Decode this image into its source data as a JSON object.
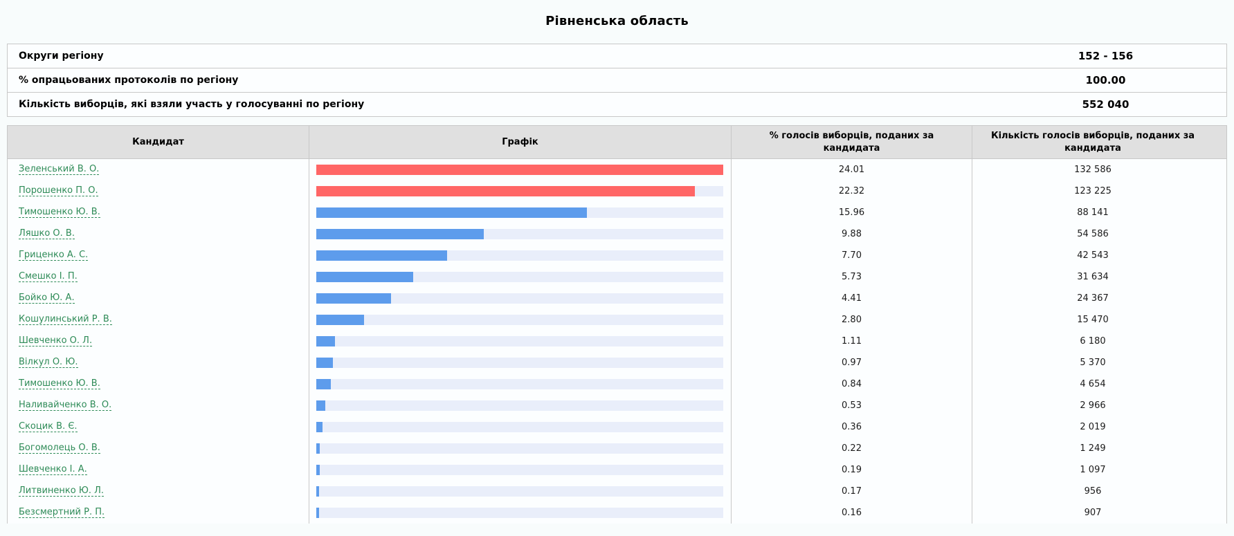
{
  "page": {
    "title": "Рівненська область",
    "colors": {
      "bar_leader_red": "#ff6666",
      "bar_blue": "#5d9cec",
      "bar_track": "#e9eefa",
      "candidate_link_green": "#2e8b57",
      "header_bg": "#e0e0e0",
      "border": "#c8c8c8"
    }
  },
  "summary": {
    "rows": [
      {
        "label": "Округи регіону",
        "value": "152 - 156"
      },
      {
        "label": "% опрацьованих протоколів по регіону",
        "value": "100.00"
      },
      {
        "label": "Кількість виборців, які взяли участь у голосуванні по регіону",
        "value": "552 040"
      }
    ]
  },
  "results_table": {
    "columns": [
      "Кандидат",
      "Графік",
      "% голосів виборців, поданих за кандидата",
      "Кількість голосів виборців, поданих за кандидата"
    ],
    "max_percent": 24.01,
    "rows": [
      {
        "candidate": "Зеленський В. О.",
        "percent": "24.01",
        "votes": "132 586",
        "leader": true
      },
      {
        "candidate": "Порошенко П. О.",
        "percent": "22.32",
        "votes": "123 225",
        "leader": true
      },
      {
        "candidate": "Тимошенко Ю. В.",
        "percent": "15.96",
        "votes": "88 141",
        "leader": false
      },
      {
        "candidate": "Ляшко О. В.",
        "percent": "9.88",
        "votes": "54 586",
        "leader": false
      },
      {
        "candidate": "Гриценко А. С.",
        "percent": "7.70",
        "votes": "42 543",
        "leader": false
      },
      {
        "candidate": "Смешко І. П.",
        "percent": "5.73",
        "votes": "31 634",
        "leader": false
      },
      {
        "candidate": "Бойко Ю. А.",
        "percent": "4.41",
        "votes": "24 367",
        "leader": false
      },
      {
        "candidate": "Кошулинський Р. В.",
        "percent": "2.80",
        "votes": "15 470",
        "leader": false
      },
      {
        "candidate": "Шевченко О. Л.",
        "percent": "1.11",
        "votes": "6 180",
        "leader": false
      },
      {
        "candidate": "Вілкул О. Ю.",
        "percent": "0.97",
        "votes": "5 370",
        "leader": false
      },
      {
        "candidate": "Тимошенко Ю. В.",
        "percent": "0.84",
        "votes": "4 654",
        "leader": false
      },
      {
        "candidate": "Наливайченко В. О.",
        "percent": "0.53",
        "votes": "2 966",
        "leader": false
      },
      {
        "candidate": "Скоцик В. Є.",
        "percent": "0.36",
        "votes": "2 019",
        "leader": false
      },
      {
        "candidate": "Богомолець О. В.",
        "percent": "0.22",
        "votes": "1 249",
        "leader": false
      },
      {
        "candidate": "Шевченко І. А.",
        "percent": "0.19",
        "votes": "1 097",
        "leader": false
      },
      {
        "candidate": "Литвиненко Ю. Л.",
        "percent": "0.17",
        "votes": "956",
        "leader": false
      },
      {
        "candidate": "Безсмертний Р. П.",
        "percent": "0.16",
        "votes": "907",
        "leader": false
      }
    ]
  },
  "chart_data": {
    "type": "bar",
    "orientation": "horizontal",
    "title": "Рівненська область",
    "categories": [
      "Зеленський В. О.",
      "Порошенко П. О.",
      "Тимошенко Ю. В.",
      "Ляшко О. В.",
      "Гриценко А. С.",
      "Смешко І. П.",
      "Бойко Ю. А.",
      "Кошулинський Р. В.",
      "Шевченко О. Л.",
      "Вілкул О. Ю.",
      "Тимошенко Ю. В.",
      "Наливайченко В. О.",
      "Скоцик В. Є.",
      "Богомолець О. В.",
      "Шевченко І. А.",
      "Литвиненко Ю. Л.",
      "Безсмертний Р. П."
    ],
    "series": [
      {
        "name": "% голосів виборців, поданих за кандидата",
        "values": [
          24.01,
          22.32,
          15.96,
          9.88,
          7.7,
          5.73,
          4.41,
          2.8,
          1.11,
          0.97,
          0.84,
          0.53,
          0.36,
          0.22,
          0.19,
          0.17,
          0.16
        ]
      },
      {
        "name": "Кількість голосів виборців, поданих за кандидата",
        "values": [
          132586,
          123225,
          88141,
          54586,
          42543,
          31634,
          24367,
          15470,
          6180,
          5370,
          4654,
          2966,
          2019,
          1249,
          1097,
          956,
          907
        ]
      }
    ],
    "xlim": [
      0,
      24.01
    ],
    "grid": false,
    "legend": false,
    "bar_color_rule": "top two bars #ff6666 (red), remaining bars #5d9cec (blue), track #e9eefa; bars scaled so max percent fills track"
  }
}
